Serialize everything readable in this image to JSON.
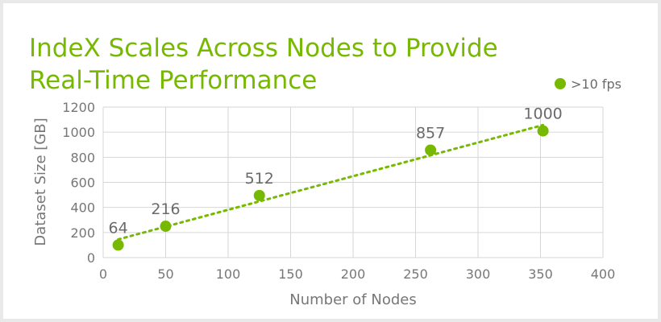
{
  "chart_data": {
    "type": "scatter",
    "title": "IndeX Scales Across Nodes to Provide Real-Time Performance",
    "xlabel": "Number of Nodes",
    "ylabel": "Dataset Size [GB]",
    "xlim": [
      0,
      400
    ],
    "ylim": [
      0,
      1200
    ],
    "xticks": [
      0,
      50,
      100,
      150,
      200,
      250,
      300,
      350,
      400
    ],
    "yticks": [
      0,
      200,
      400,
      600,
      800,
      1000,
      1200
    ],
    "grid": true,
    "legend_position": "top-right",
    "trendline": "linear-dotted",
    "series": [
      {
        "name": ">10 fps",
        "color": "#76b900",
        "points": [
          {
            "x": 12,
            "y": 100,
            "label": "64"
          },
          {
            "x": 50,
            "y": 250,
            "label": "216"
          },
          {
            "x": 125,
            "y": 495,
            "label": "512"
          },
          {
            "x": 262,
            "y": 857,
            "label": "857"
          },
          {
            "x": 352,
            "y": 1010,
            "label": "1000"
          }
        ]
      }
    ]
  }
}
